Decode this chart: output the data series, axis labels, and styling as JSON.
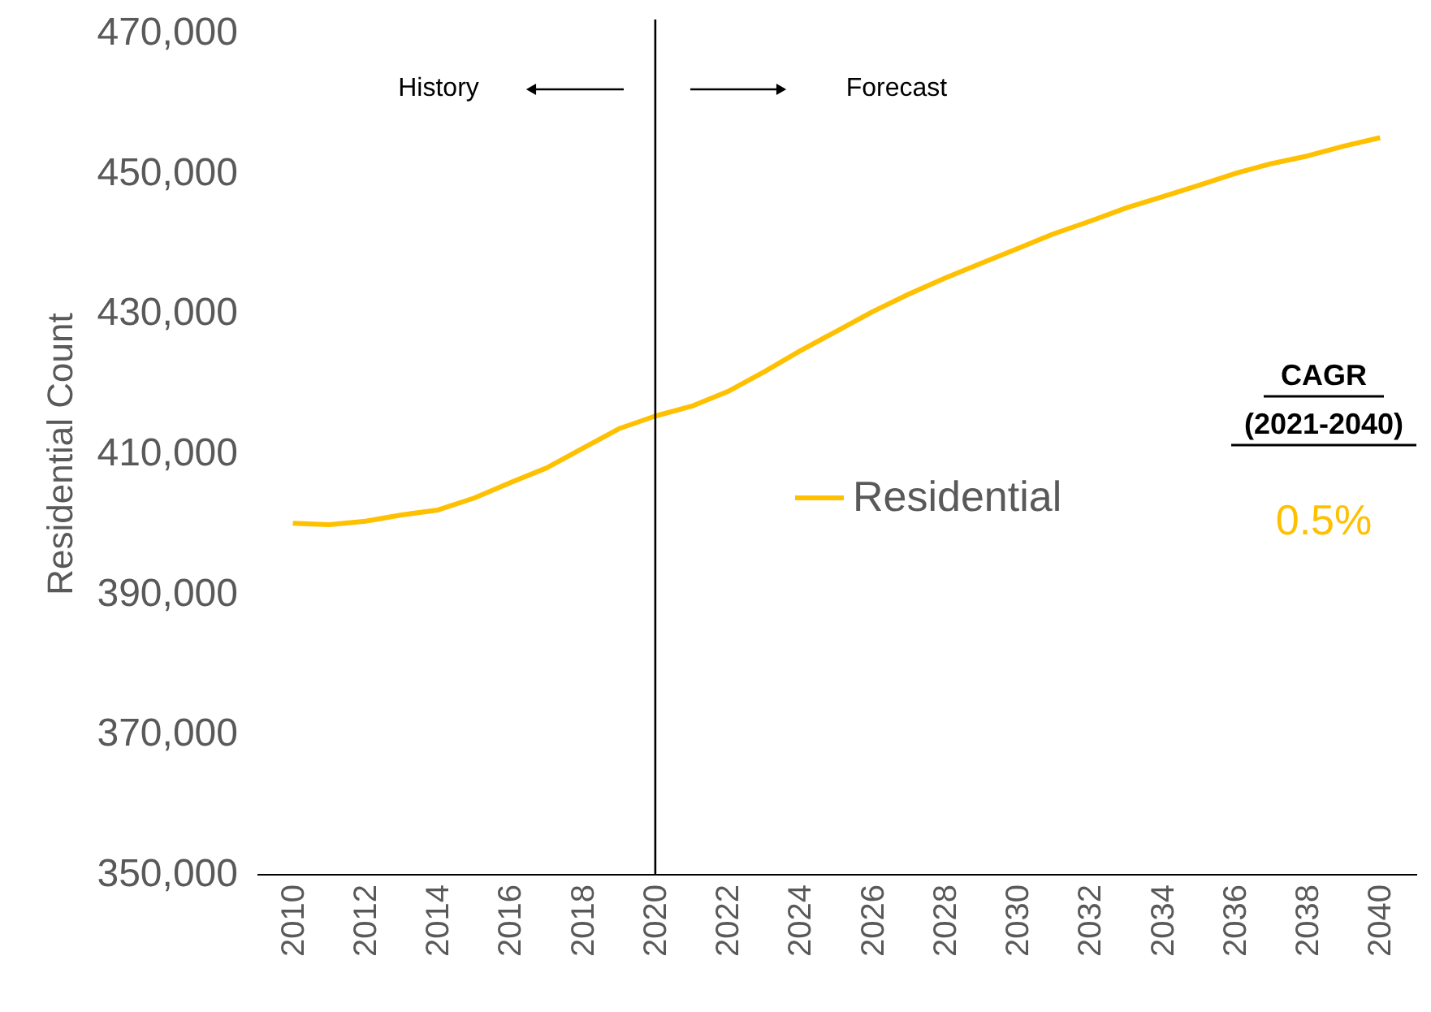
{
  "chart_data": {
    "type": "line",
    "ylabel": "Residential Count",
    "x": [
      2010,
      2011,
      2012,
      2013,
      2014,
      2015,
      2016,
      2017,
      2018,
      2019,
      2020,
      2021,
      2022,
      2023,
      2024,
      2025,
      2026,
      2027,
      2028,
      2029,
      2030,
      2031,
      2032,
      2033,
      2034,
      2035,
      2036,
      2037,
      2038,
      2039,
      2040
    ],
    "series": [
      {
        "name": "Residential",
        "color": "#ffc000",
        "values": [
          400000,
          399800,
          400300,
          401200,
          401900,
          403600,
          405800,
          407900,
          410700,
          413500,
          415300,
          416700,
          418800,
          421600,
          424600,
          427400,
          430200,
          432700,
          435000,
          437100,
          439200,
          441300,
          443100,
          445000,
          446600,
          448200,
          449900,
          451300,
          452400,
          453800,
          455000
        ]
      }
    ],
    "xlim": [
      2009,
      2041
    ],
    "xticks": [
      2010,
      2012,
      2014,
      2016,
      2018,
      2020,
      2022,
      2024,
      2026,
      2028,
      2030,
      2032,
      2034,
      2036,
      2038,
      2040
    ],
    "ylim": [
      350000,
      470000
    ],
    "yticks": [
      {
        "value": 350000,
        "label": "350,000"
      },
      {
        "value": 370000,
        "label": "370,000"
      },
      {
        "value": 390000,
        "label": "390,000"
      },
      {
        "value": 410000,
        "label": "410,000"
      },
      {
        "value": 430000,
        "label": "430,000"
      },
      {
        "value": 450000,
        "label": "450,000"
      },
      {
        "value": 470000,
        "label": "470,000"
      }
    ],
    "ref_lines": [
      {
        "axis": "x",
        "value": 2020,
        "color": "#000000"
      }
    ],
    "annotations": [
      "History",
      "Forecast",
      "CAGR",
      "(2021-2040)",
      "0.5%"
    ],
    "grid": false,
    "legend": "right",
    "marker": "none",
    "line_style": "solid"
  }
}
